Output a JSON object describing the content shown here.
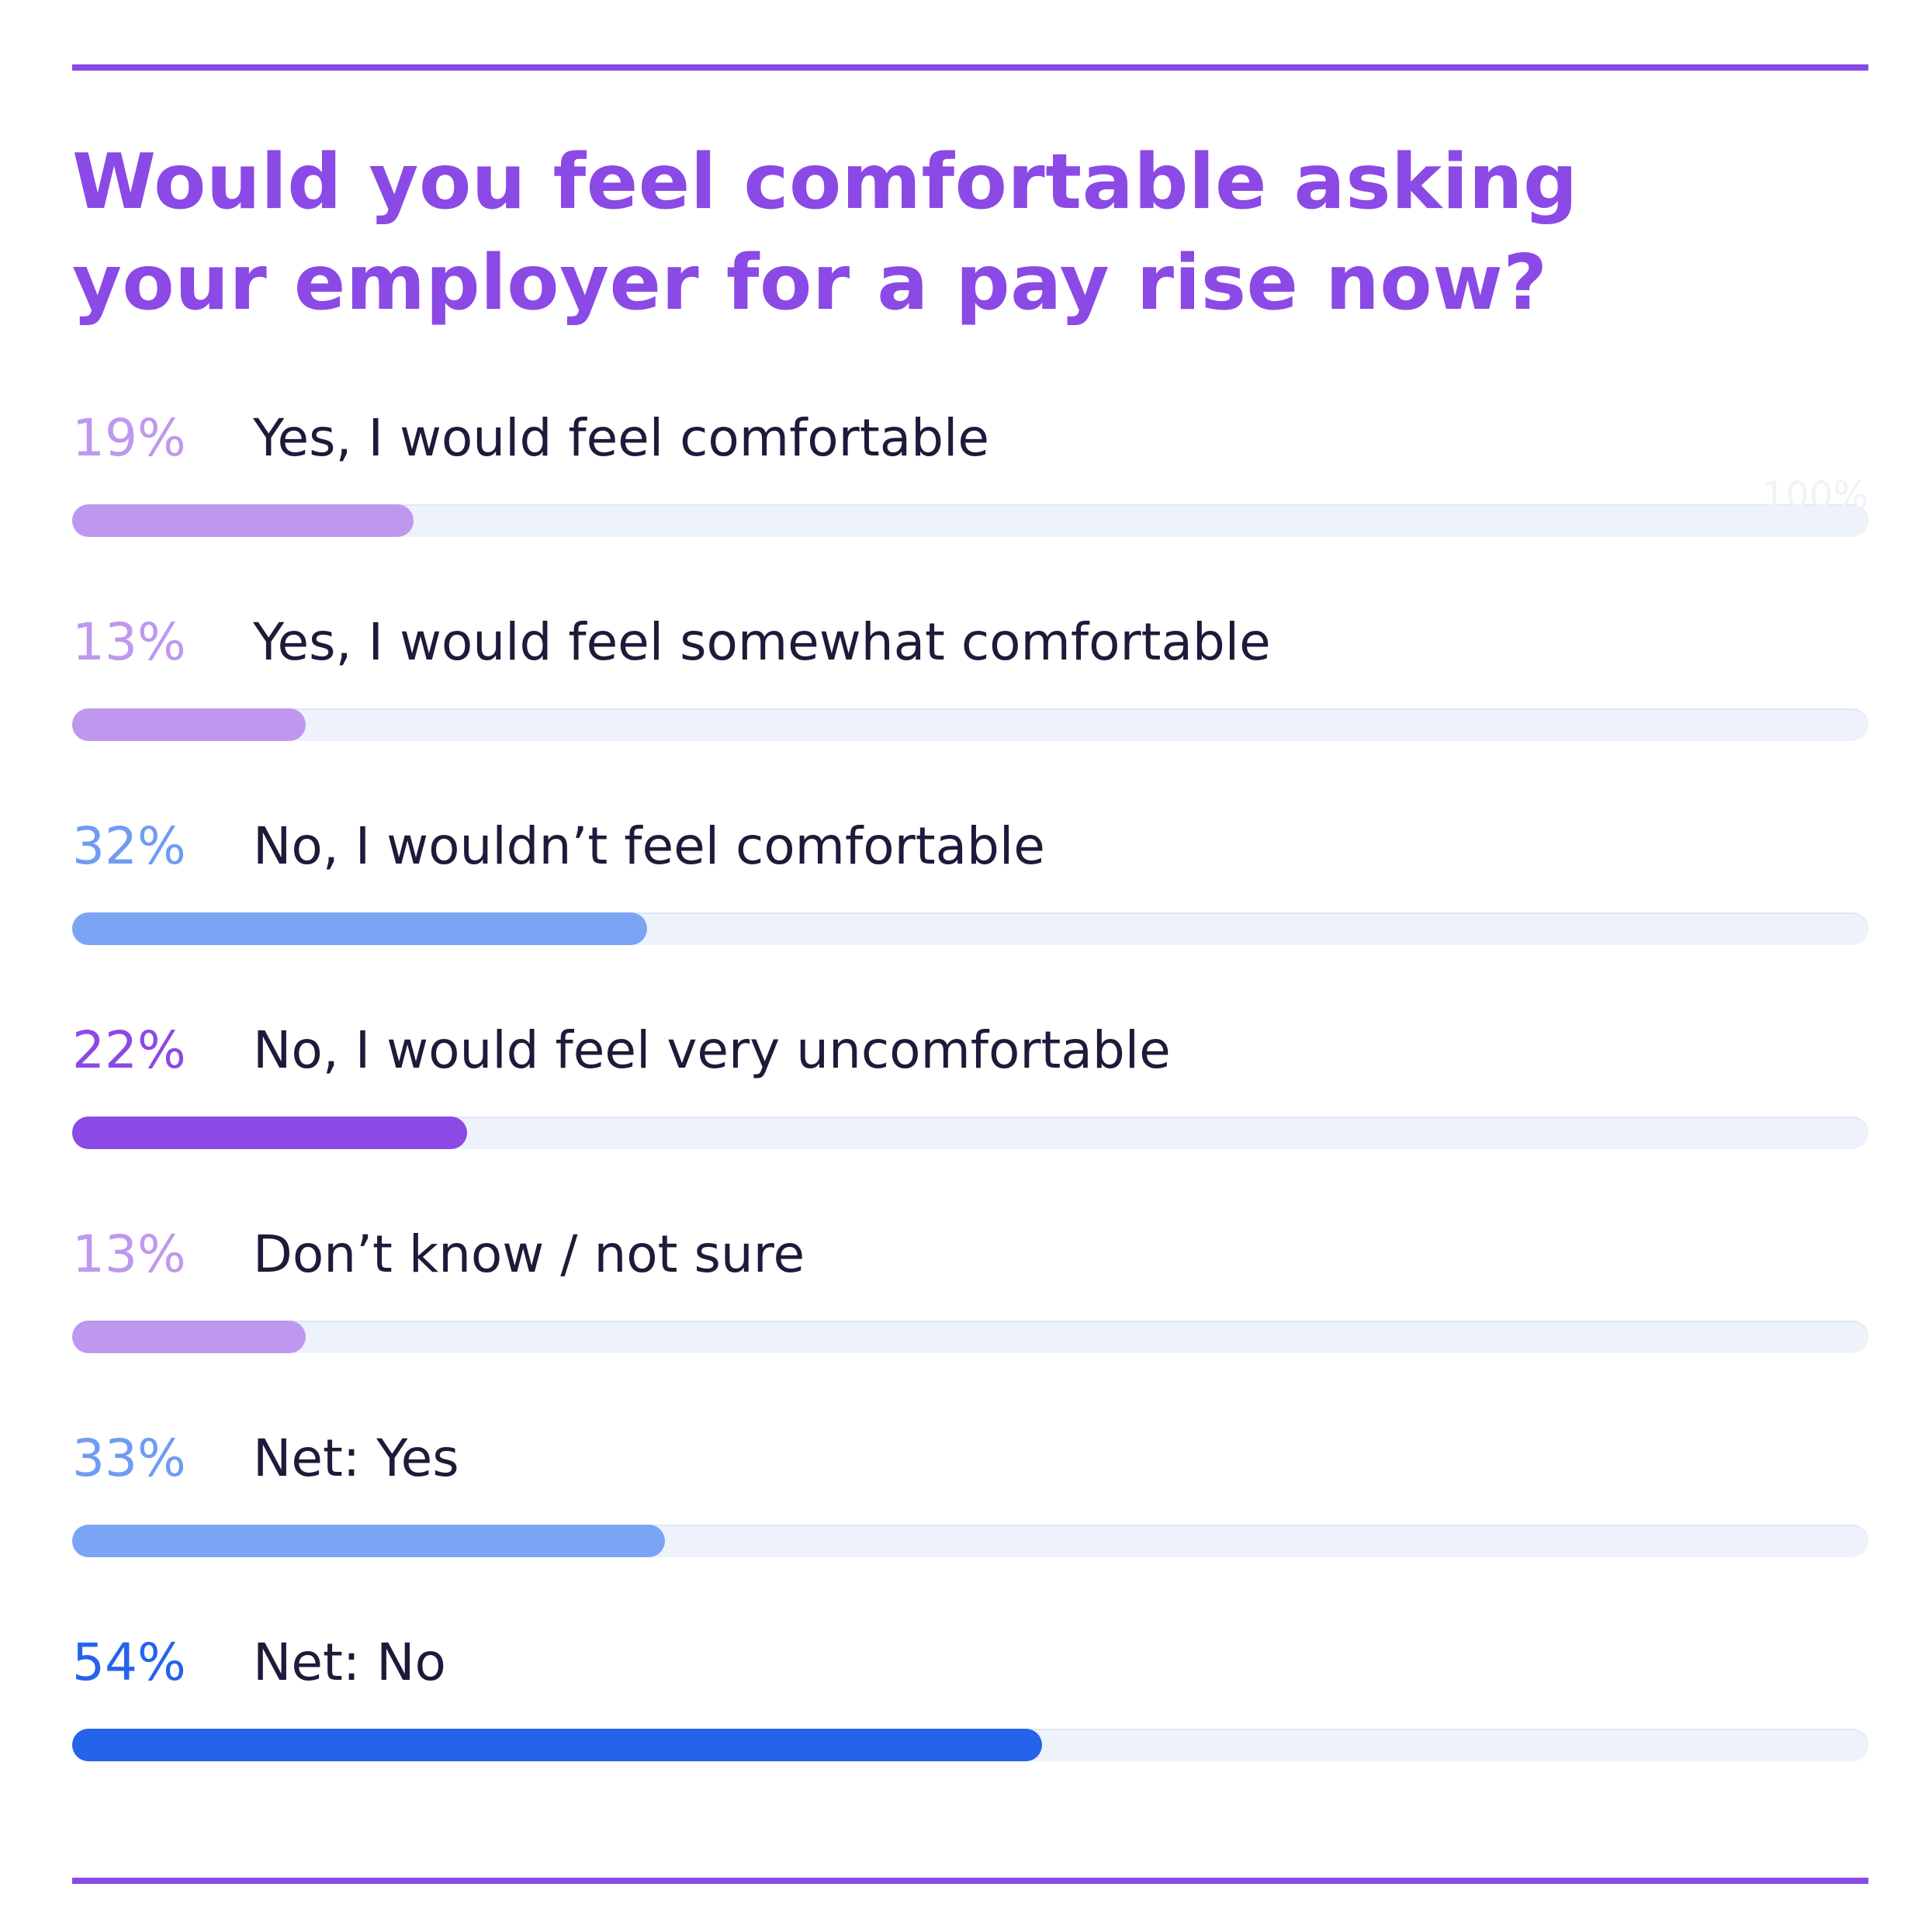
{
  "chart_data": {
    "type": "bar",
    "orientation": "horizontal",
    "title": "Would you feel comfortable asking your employer for a pay rise now?",
    "xlim": [
      0,
      100
    ],
    "scale_label": "100%",
    "grid": false,
    "legend": "none",
    "categories": [
      "Yes, I would feel comfortable",
      "Yes, I would feel somewhat comfortable",
      "No, I wouldn’t feel comfortable",
      "No, I would feel very uncomfortable",
      "Don’t know / not sure",
      "Net: Yes",
      "Net: No"
    ],
    "values": [
      19,
      13,
      32,
      22,
      13,
      33,
      54
    ],
    "value_labels": [
      "19%",
      "13%",
      "32%",
      "22%",
      "13%",
      "33%",
      "54%"
    ],
    "colors": [
      "#be98ee",
      "#be98ee",
      "#7ba5f4",
      "#8b49e5",
      "#be98ee",
      "#7ba5f4",
      "#2563eb"
    ],
    "label_colors": [
      "#be98ee",
      "#be98ee",
      "#6f9cf2",
      "#8b49e5",
      "#be98ee",
      "#6f9cf2",
      "#2563eb"
    ]
  },
  "theme": {
    "accent": "#8b49e5",
    "track": "#eef2fb",
    "text": "#1c1b3a"
  }
}
